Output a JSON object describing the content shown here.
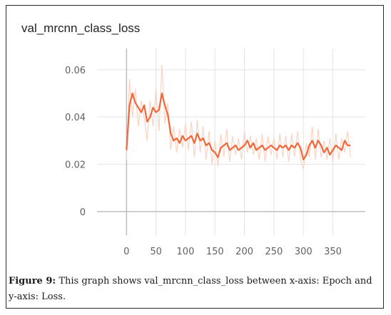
{
  "chart_data": {
    "type": "line",
    "title": "val_mrcnn_class_loss",
    "xlabel": "",
    "ylabel": "",
    "xlim": [
      -50,
      405
    ],
    "ylim": [
      -0.01,
      0.069
    ],
    "x_ticks": [
      0,
      50,
      100,
      150,
      200,
      250,
      300,
      350
    ],
    "y_ticks": [
      0,
      0.02,
      0.04,
      0.06
    ],
    "x_tick_labels": [
      "0",
      "50",
      "100",
      "150",
      "200",
      "250",
      "300",
      "350"
    ],
    "y_tick_labels": [
      "0",
      "0.02",
      "0.04",
      "0.06"
    ],
    "grid": true,
    "series": [
      {
        "name": "",
        "color": "#f0673a",
        "raw_color": "#fbd3c4",
        "x": [
          0,
          5,
          10,
          15,
          20,
          25,
          30,
          35,
          40,
          45,
          50,
          55,
          60,
          65,
          70,
          75,
          80,
          85,
          90,
          95,
          100,
          105,
          110,
          115,
          120,
          125,
          130,
          135,
          140,
          145,
          150,
          155,
          160,
          165,
          170,
          175,
          180,
          185,
          190,
          195,
          200,
          205,
          210,
          215,
          220,
          225,
          230,
          235,
          240,
          245,
          250,
          255,
          260,
          265,
          270,
          275,
          280,
          285,
          290,
          295,
          300,
          305,
          310,
          315,
          320,
          325,
          330,
          335,
          340,
          345,
          350,
          355,
          360,
          365,
          370,
          375,
          380
        ],
        "values": [
          0.026,
          0.045,
          0.05,
          0.046,
          0.044,
          0.042,
          0.045,
          0.038,
          0.04,
          0.044,
          0.042,
          0.043,
          0.05,
          0.045,
          0.041,
          0.033,
          0.03,
          0.031,
          0.029,
          0.032,
          0.03,
          0.031,
          0.032,
          0.029,
          0.033,
          0.03,
          0.031,
          0.028,
          0.029,
          0.026,
          0.025,
          0.023,
          0.027,
          0.028,
          0.029,
          0.026,
          0.027,
          0.028,
          0.026,
          0.027,
          0.028,
          0.03,
          0.027,
          0.029,
          0.026,
          0.027,
          0.028,
          0.026,
          0.027,
          0.028,
          0.027,
          0.026,
          0.028,
          0.027,
          0.028,
          0.026,
          0.028,
          0.027,
          0.029,
          0.027,
          0.022,
          0.024,
          0.028,
          0.03,
          0.027,
          0.03,
          0.028,
          0.025,
          0.027,
          0.024,
          0.026,
          0.028,
          0.027,
          0.026,
          0.03,
          0.028,
          0.028
        ],
        "raw_values": [
          0.022,
          0.056,
          0.04,
          0.052,
          0.036,
          0.047,
          0.04,
          0.03,
          0.047,
          0.036,
          0.052,
          0.034,
          0.062,
          0.037,
          0.046,
          0.026,
          0.036,
          0.025,
          0.035,
          0.027,
          0.037,
          0.026,
          0.038,
          0.023,
          0.039,
          0.025,
          0.036,
          0.022,
          0.034,
          0.02,
          0.03,
          0.019,
          0.033,
          0.023,
          0.035,
          0.021,
          0.032,
          0.024,
          0.031,
          0.022,
          0.034,
          0.025,
          0.032,
          0.024,
          0.031,
          0.022,
          0.033,
          0.021,
          0.032,
          0.024,
          0.031,
          0.022,
          0.033,
          0.023,
          0.032,
          0.021,
          0.033,
          0.023,
          0.034,
          0.022,
          0.018,
          0.029,
          0.023,
          0.036,
          0.022,
          0.035,
          0.023,
          0.03,
          0.022,
          0.031,
          0.021,
          0.033,
          0.022,
          0.031,
          0.025,
          0.034,
          0.023
        ]
      }
    ]
  },
  "caption": {
    "label": "Figure 9:",
    "text": " This graph shows val_mrcnn_class_loss between x-axis: Epoch and y-axis: Loss."
  }
}
